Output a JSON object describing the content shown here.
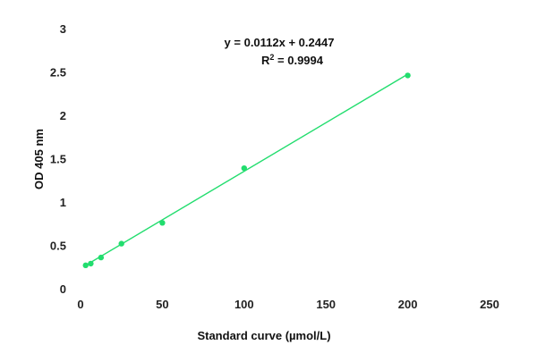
{
  "chart_data": {
    "type": "scatter",
    "title": "",
    "xlabel": "Standard curve (µmol/L)",
    "ylabel": "OD 405 nm",
    "xlim": [
      0,
      250
    ],
    "ylim": [
      0,
      3
    ],
    "x_ticks": [
      "0",
      "50",
      "100",
      "150",
      "200",
      "250"
    ],
    "y_ticks": [
      "0",
      "0.5",
      "1",
      "1.5",
      "2",
      "2.5",
      "3"
    ],
    "grid": false,
    "series": [
      {
        "x": [
          3.125,
          6.25,
          12.5,
          25,
          50,
          100,
          200
        ],
        "y": [
          0.28,
          0.3,
          0.37,
          0.53,
          0.77,
          1.4,
          2.47
        ],
        "color": "#22dd6e",
        "trendline": {
          "slope": 0.0112,
          "intercept": 0.2447
        }
      }
    ],
    "annotations": {
      "equation": "y = 0.0112x + 0.2447",
      "r2_prefix": "R",
      "r2_sup": "2",
      "r2_value": " = 0.9994"
    }
  }
}
